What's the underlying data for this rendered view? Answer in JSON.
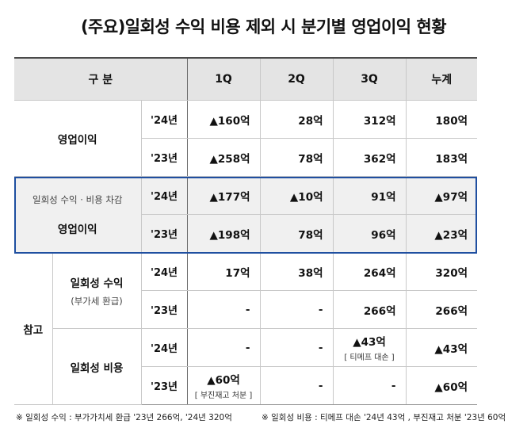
{
  "title": "(주요)일회성 수익 비용 제외 시 분기별 영업이익 현황",
  "header": {
    "category": "구  분",
    "q1": "1Q",
    "q2": "2Q",
    "q3": "3Q",
    "total": "누계"
  },
  "rows": {
    "op": {
      "label": "영업이익",
      "y24": {
        "year": "'24년",
        "q1": "▲160억",
        "q2": "28억",
        "q3": "312억",
        "total": "180억"
      },
      "y23": {
        "year": "'23년",
        "q1": "▲258억",
        "q2": "78억",
        "q3": "362억",
        "total": "183억"
      }
    },
    "adj": {
      "sublabel": "일회성 수익 · 비용 차감",
      "label": "영업이익",
      "y24": {
        "year": "'24년",
        "q1": "▲177억",
        "q2": "▲10억",
        "q3": "91억",
        "total": "▲97억"
      },
      "y23": {
        "year": "'23년",
        "q1": "▲198억",
        "q2": "78억",
        "q3": "96억",
        "total": "▲23억"
      }
    },
    "ref": {
      "label": "참고",
      "income": {
        "label": "일회성 수익",
        "sublabel": "(부가세 환급)",
        "y24": {
          "year": "'24년",
          "q1": "17억",
          "q2": "38억",
          "q3": "264억",
          "total": "320억"
        },
        "y23": {
          "year": "'23년",
          "q1": "-",
          "q2": "-",
          "q3": "266억",
          "total": "266억"
        }
      },
      "cost": {
        "label": "일회성 비용",
        "y24": {
          "year": "'24년",
          "q1": "-",
          "q2": "-",
          "q3": "▲43억",
          "q3_note": "[ 티메프 대손 ]",
          "total": "▲43억"
        },
        "y23": {
          "year": "'23년",
          "q1": "▲60억",
          "q1_note": "[ 부진재고 처분 ]",
          "q2": "-",
          "q3": "-",
          "total": "▲60억"
        }
      }
    }
  },
  "footnotes": {
    "income": "※ 일회성 수익 : 부가가치세 환급 '23년 266억, '24년 320억",
    "cost": "※ 일회성 비용 : 티메프 대손 '24년 43억 , 부진재고 처분 '23년 60억"
  }
}
